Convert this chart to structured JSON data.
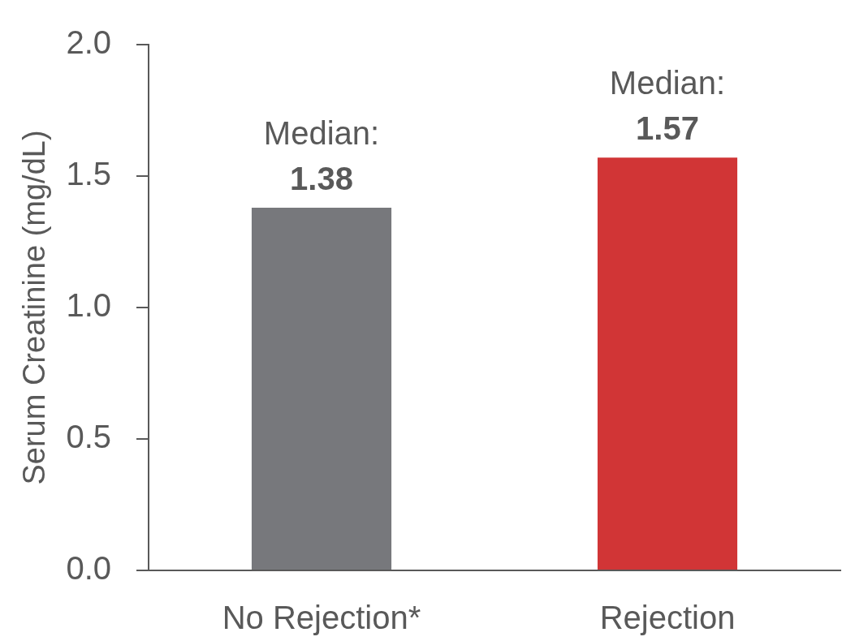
{
  "chart_data": {
    "type": "bar",
    "ylabel": "Serum Creatinine (mg/dL)",
    "categories": [
      "No Rejection*",
      "Rejection"
    ],
    "values": [
      1.38,
      1.57
    ],
    "colors": [
      "#77787c",
      "#d13536"
    ],
    "value_labels": [
      "Median:\n1.38",
      "Median:\n1.57"
    ],
    "ylim": [
      0,
      2
    ],
    "yticks": [
      {
        "value": 0,
        "label": "0.0"
      },
      {
        "value": 0.5,
        "label": "0.5"
      },
      {
        "value": 1,
        "label": "1.0"
      },
      {
        "value": 1.5,
        "label": "1.5"
      },
      {
        "value": 2,
        "label": "2.0"
      }
    ]
  }
}
